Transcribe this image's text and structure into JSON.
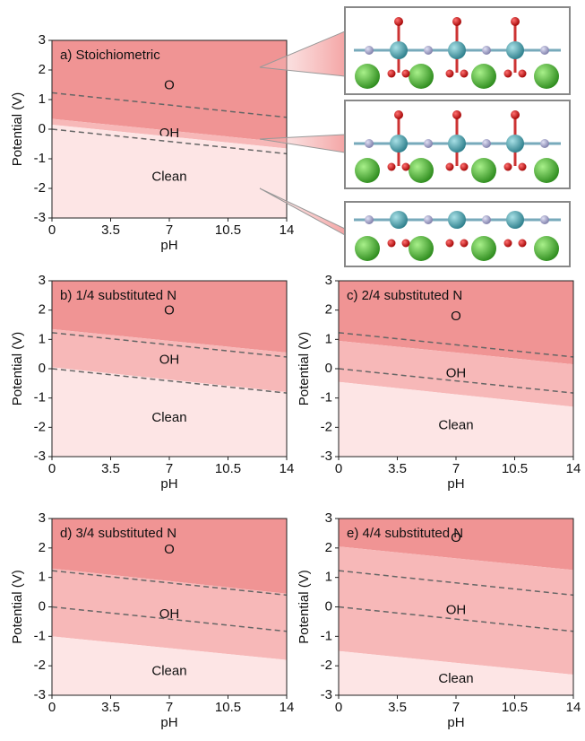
{
  "chart_data": [
    {
      "type": "pourbaix",
      "title": "a) Stoichiometric",
      "xlabel": "pH",
      "ylabel": "Potential (V)",
      "x": [
        0,
        14
      ],
      "xlim": [
        0,
        14
      ],
      "ylim": [
        -3,
        3
      ],
      "xticks": [
        0,
        3.5,
        7,
        10.5,
        14
      ],
      "yticks": [
        -3,
        -2,
        -1,
        0,
        1,
        2,
        3
      ],
      "regions": [
        {
          "name": "O",
          "color": "#f09494",
          "lower": [
            0.35,
            -0.45
          ]
        },
        {
          "name": "OH",
          "color": "#f7b8b8",
          "lower": [
            0.15,
            -0.65
          ]
        },
        {
          "name": "Clean",
          "color": "#fde5e5"
        }
      ],
      "dashed_lines": [
        {
          "values": [
            1.23,
            0.4
          ]
        },
        {
          "values": [
            0,
            -0.83
          ]
        }
      ]
    },
    {
      "type": "pourbaix",
      "title": "b) 1/4 substituted N",
      "xlabel": "pH",
      "ylabel": "Potential (V)",
      "x": [
        0,
        14
      ],
      "xlim": [
        0,
        14
      ],
      "ylim": [
        -3,
        3
      ],
      "xticks": [
        0,
        3.5,
        7,
        10.5,
        14
      ],
      "yticks": [
        -3,
        -2,
        -1,
        0,
        1,
        2,
        3
      ],
      "regions": [
        {
          "name": "O",
          "color": "#f09494",
          "lower": [
            1.35,
            0.55
          ]
        },
        {
          "name": "OH",
          "color": "#f7b8b8",
          "lower": [
            0.05,
            -0.8
          ]
        },
        {
          "name": "Clean",
          "color": "#fde5e5"
        }
      ],
      "dashed_lines": [
        {
          "values": [
            1.23,
            0.4
          ]
        },
        {
          "values": [
            0,
            -0.83
          ]
        }
      ]
    },
    {
      "type": "pourbaix",
      "title": "c) 2/4 substituted N",
      "xlabel": "pH",
      "ylabel": "Potential (V)",
      "x": [
        0,
        14
      ],
      "xlim": [
        0,
        14
      ],
      "ylim": [
        -3,
        3
      ],
      "xticks": [
        0,
        3.5,
        7,
        10.5,
        14
      ],
      "yticks": [
        -3,
        -2,
        -1,
        0,
        1,
        2,
        3
      ],
      "regions": [
        {
          "name": "O",
          "color": "#f09494",
          "lower": [
            0.95,
            0.15
          ]
        },
        {
          "name": "OH",
          "color": "#f7b8b8",
          "lower": [
            -0.45,
            -1.3
          ]
        },
        {
          "name": "Clean",
          "color": "#fde5e5"
        }
      ],
      "dashed_lines": [
        {
          "values": [
            1.23,
            0.4
          ]
        },
        {
          "values": [
            0,
            -0.83
          ]
        }
      ]
    },
    {
      "type": "pourbaix",
      "title": "d) 3/4 substituted N",
      "xlabel": "pH",
      "ylabel": "Potential (V)",
      "x": [
        0,
        14
      ],
      "xlim": [
        0,
        14
      ],
      "ylim": [
        -3,
        3
      ],
      "xticks": [
        0,
        3.5,
        7,
        10.5,
        14
      ],
      "yticks": [
        -3,
        -2,
        -1,
        0,
        1,
        2,
        3
      ],
      "regions": [
        {
          "name": "O",
          "color": "#f09494",
          "lower": [
            1.3,
            0.45
          ]
        },
        {
          "name": "OH",
          "color": "#f7b8b8",
          "lower": [
            -1.0,
            -1.8
          ]
        },
        {
          "name": "Clean",
          "color": "#fde5e5"
        }
      ],
      "dashed_lines": [
        {
          "values": [
            1.23,
            0.4
          ]
        },
        {
          "values": [
            0,
            -0.83
          ]
        }
      ]
    },
    {
      "type": "pourbaix",
      "title": "e) 4/4 substituted N",
      "xlabel": "pH",
      "ylabel": "Potential (V)",
      "x": [
        0,
        14
      ],
      "xlim": [
        0,
        14
      ],
      "ylim": [
        -3,
        3
      ],
      "xticks": [
        0,
        3.5,
        7,
        10.5,
        14
      ],
      "yticks": [
        -3,
        -2,
        -1,
        0,
        1,
        2,
        3
      ],
      "regions": [
        {
          "name": "O",
          "color": "#f09494",
          "lower": [
            2.05,
            1.25
          ]
        },
        {
          "name": "OH",
          "color": "#f7b8b8",
          "lower": [
            -1.5,
            -2.3
          ]
        },
        {
          "name": "Clean",
          "color": "#fde5e5"
        }
      ],
      "dashed_lines": [
        {
          "values": [
            1.23,
            0.4
          ]
        },
        {
          "values": [
            0,
            -0.83
          ]
        }
      ]
    }
  ]
}
